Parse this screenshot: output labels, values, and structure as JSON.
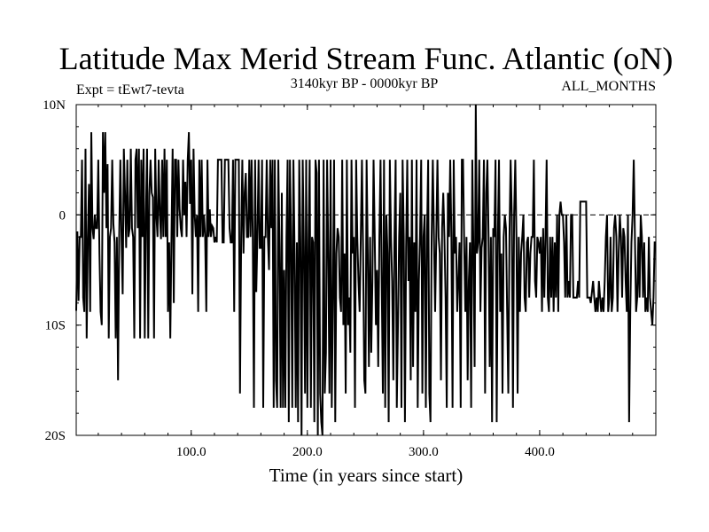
{
  "chart_data": {
    "type": "line",
    "title": "Latitude Max Merid Stream Func. Atlantic (oN)",
    "subtitle_left": "Expt = tEwt7-tevta",
    "subtitle_center": "3140kyr BP - 0000kyr BP",
    "subtitle_right": "ALL_MONTHS",
    "xlabel": "Time (in years since start)",
    "ylabel": "",
    "xlim": [
      1,
      500
    ],
    "ylim": [
      -20,
      10
    ],
    "xticks": [
      {
        "v": 100,
        "label": "100.0"
      },
      {
        "v": 200,
        "label": "200.0"
      },
      {
        "v": 300,
        "label": "300.0"
      },
      {
        "v": 400,
        "label": "400.0"
      }
    ],
    "yticks": [
      {
        "v": 10,
        "label": "10N"
      },
      {
        "v": 0,
        "label": "0"
      },
      {
        "v": -10,
        "label": "10S"
      },
      {
        "v": -20,
        "label": "20S"
      }
    ],
    "zero_line": true,
    "series": [
      {
        "name": "latitude",
        "x_start": 1,
        "x_step": 1,
        "values": [
          -8.7,
          -1.5,
          -7.8,
          -2.0,
          -2.0,
          5.0,
          -7.5,
          -8.8,
          6.0,
          -11.2,
          -2.2,
          2.8,
          -8.8,
          7.5,
          -1.2,
          -2.2,
          0.0,
          -1.2,
          -1.2,
          5.0,
          -3.5,
          -8.8,
          -10.0,
          7.5,
          2.0,
          7.5,
          -1.2,
          4.6,
          -11.2,
          -2.0,
          -1.2,
          5.0,
          -0.8,
          -2.5,
          -11.2,
          -2.0,
          -15.0,
          -2.0,
          5.0,
          -2.0,
          -7.2,
          6.0,
          2.0,
          -3.0,
          5.0,
          -2.0,
          -1.2,
          6.0,
          -1.2,
          -2.0,
          -11.2,
          5.0,
          6.0,
          -1.2,
          6.0,
          -11.2,
          5.0,
          -2.0,
          6.0,
          -11.2,
          0.0,
          6.0,
          -11.2,
          2.0,
          5.0,
          2.0,
          1.6,
          -11.2,
          6.0,
          0.0,
          -2.0,
          5.0,
          0.0,
          -2.2,
          5.0,
          -2.0,
          6.0,
          -2.0,
          5.0,
          -8.8,
          -2.5,
          -11.2,
          -2.0,
          6.0,
          -8.0,
          5.0,
          5.0,
          -2.0,
          5.0,
          0.5,
          -1.2,
          -2.0,
          5.0,
          0.0,
          3.0,
          -2.0,
          5.0,
          7.5,
          1.0,
          5.0,
          -7.2,
          6.0,
          0.0,
          -2.0,
          0.0,
          -8.8,
          5.0,
          -2.0,
          5.0,
          -2.0,
          0.0,
          -2.0,
          -8.8,
          5.0,
          -2.0,
          0.5,
          -2.0,
          -1.0,
          -1.2,
          -2.5,
          -2.0,
          -2.5,
          5.0,
          5.0,
          5.0,
          5.0,
          -2.5,
          -2.5,
          5.0,
          5.0,
          5.0,
          5.0,
          -1.2,
          -2.5,
          -2.5,
          5.0,
          -8.8,
          5.0,
          5.0,
          5.0,
          5.0,
          -16.2,
          -2.2,
          5.0,
          -3.5,
          2.0,
          3.8,
          -2.0,
          -2.0,
          5.0,
          -2.0,
          5.0,
          -2.0,
          -17.5,
          5.0,
          -7.0,
          -2.0,
          5.0,
          -3.0,
          -3.0,
          5.0,
          -17.5,
          -2.0,
          -2.0,
          5.0,
          -2.0,
          -5.0,
          5.0,
          -1.2,
          5.0,
          -17.5,
          5.0,
          -15.0,
          -17.5,
          5.0,
          -3.0,
          -17.5,
          2.0,
          -17.5,
          -5.0,
          -17.5,
          -2.0,
          5.0,
          -18.8,
          5.0,
          -2.0,
          -17.5,
          5.0,
          -3.5,
          -17.5,
          -2.5,
          -18.8,
          5.0,
          -2.5,
          -20.0,
          5.0,
          -3.0,
          -16.2,
          5.0,
          -17.5,
          -2.5,
          5.0,
          -17.5,
          -2.0,
          -2.5,
          -18.8,
          5.0,
          3.8,
          -20.0,
          5.0,
          -16.2,
          -18.8,
          -20.0,
          5.0,
          -16.2,
          -12.5,
          5.0,
          -3.5,
          -16.2,
          5.0,
          -17.5,
          -7.5,
          5.0,
          -18.8,
          -3.5,
          -1.2,
          -2.0,
          -7.5,
          -8.8,
          5.0,
          -10.0,
          -3.5,
          -16.2,
          5.0,
          -10.0,
          -7.5,
          -12.5,
          5.0,
          -3.5,
          -2.0,
          -17.5,
          5.0,
          -2.0,
          -6.0,
          -8.8,
          -2.0,
          5.0,
          -3.5,
          -15.0,
          -16.2,
          5.0,
          -3.5,
          -13.8,
          -2.0,
          -12.5,
          -6.0,
          5.0,
          -2.0,
          -10.0,
          -5.0,
          -13.8,
          -2.0,
          5.0,
          -6.0,
          -16.2,
          5.0,
          -17.5,
          0.0,
          -3.5,
          -18.8,
          5.0,
          -2.0,
          -6.0,
          -15.0,
          -2.0,
          5.0,
          -17.5,
          -10.0,
          -2.0,
          2.0,
          -17.5,
          5.0,
          -2.0,
          -18.8,
          -3.0,
          5.0,
          -6.0,
          -2.0,
          -15.0,
          5.0,
          -13.8,
          -2.5,
          -8.8,
          5.0,
          -17.5,
          -6.0,
          -2.0,
          5.0,
          -16.2,
          -2.0,
          0.0,
          -17.5,
          -2.0,
          5.0,
          -16.2,
          -18.8,
          -2.0,
          5.0,
          -2.0,
          -8.8,
          -2.0,
          5.0,
          -2.0,
          -3.5,
          -15.0,
          -1.2,
          2.0,
          -2.0,
          -7.5,
          -17.5,
          2.0,
          -2.0,
          5.0,
          -2.0,
          -17.5,
          5.0,
          -3.5,
          -2.0,
          -8.8,
          -6.0,
          -2.5,
          -17.5,
          5.0,
          5.0,
          -2.5,
          -8.8,
          -2.0,
          -15.0,
          -6.0,
          -2.5,
          -17.5,
          5.0,
          -3.5,
          -13.8,
          10.0,
          -3.5,
          -2.5,
          5.0,
          -8.8,
          -3.0,
          -2.0,
          5.0,
          -16.2,
          2.0,
          5.0,
          -2.0,
          -13.8,
          -2.0,
          -18.8,
          -1.2,
          -2.0,
          5.0,
          -18.8,
          -2.0,
          5.0,
          -8.8,
          -3.5,
          -16.2,
          -2.0,
          0.0,
          -1.2,
          -8.8,
          -16.2,
          -2.0,
          5.0,
          0.0,
          -17.5,
          0.0,
          5.0,
          -2.0,
          -16.2,
          -2.0,
          -8.8,
          -3.5,
          -2.0,
          0.0,
          -7.5,
          -8.8,
          -2.5,
          -2.0,
          -7.5,
          -3.5,
          -2.0,
          -2.0,
          5.0,
          -6.0,
          -7.5,
          -2.0,
          -2.5,
          -3.5,
          -2.0,
          -8.8,
          -1.2,
          -7.5,
          -2.0,
          5.0,
          -7.5,
          -8.8,
          -2.0,
          -7.5,
          -2.0,
          -8.8,
          -2.5,
          -7.5,
          0.0,
          -8.8,
          0.0,
          1.2,
          0.0,
          0.0,
          -2.5,
          -7.5,
          0.0,
          -7.5,
          -6.0,
          -7.5,
          0.0,
          0.0,
          -7.5,
          -7.5,
          -7.5,
          -7.5,
          -6.0,
          -7.5,
          1.2,
          1.2,
          1.2,
          1.2,
          1.2,
          1.2,
          -7.5,
          -7.5,
          -7.5,
          -8.0,
          -7.0,
          -6.0,
          -7.5,
          -8.8,
          -7.5,
          -8.8,
          -6.0,
          -7.5,
          -8.8,
          -7.5,
          -8.8,
          -6.0,
          -2.0,
          0.0,
          -8.8,
          -7.5,
          -2.0,
          -8.8,
          -7.5,
          -1.2,
          0.0,
          -2.0,
          -8.8,
          -3.5,
          0.0,
          -2.0,
          -7.5,
          -1.2,
          -2.0,
          -6.0,
          -8.8,
          0.0,
          -18.8,
          -8.8,
          -2.5,
          0.0,
          5.0,
          -2.0,
          -8.8,
          -7.5,
          -2.0,
          -7.5,
          0.0,
          -2.0,
          -7.5,
          -2.5,
          -8.8,
          -7.5,
          -8.8,
          -2.0,
          -7.5,
          -8.8,
          -10.0,
          -7.5,
          -2.5,
          -2.5
        ]
      }
    ]
  }
}
